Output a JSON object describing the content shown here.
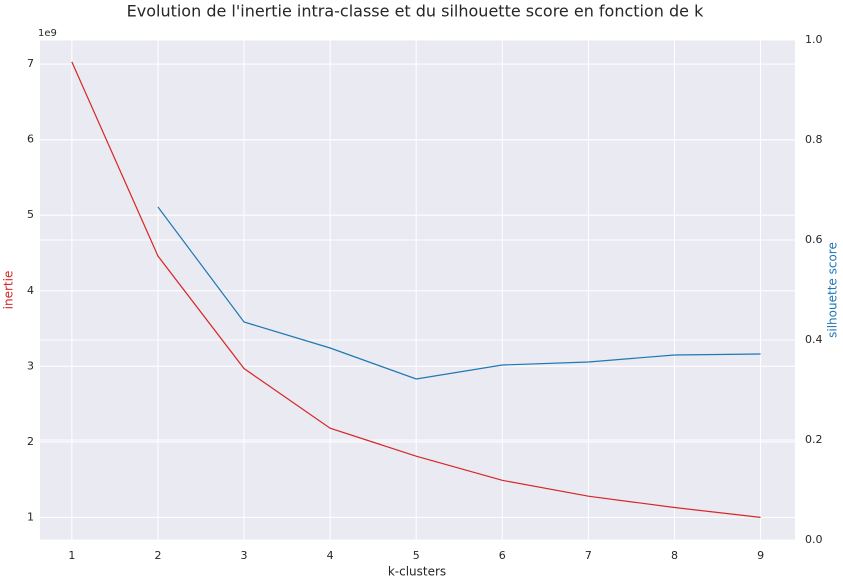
{
  "chart_data": {
    "type": "line",
    "title": "Evolution de l'inertie intra-classe et du silhouette score en fonction de k",
    "x_label": "k-clusters",
    "y_label": "inertie",
    "y2_label": "silhouette score",
    "y_offset_label": "1e9",
    "x": [
      1,
      2,
      3,
      4,
      5,
      6,
      7,
      8,
      9
    ],
    "series": [
      {
        "color": "#d62728",
        "values": [
          7.03,
          4.46,
          2.97,
          2.18,
          1.81,
          1.49,
          1.28,
          1.13,
          1.0
        ]
      },
      {
        "color": "#1f77b4",
        "axis": "y2",
        "values": [
          null,
          0.666,
          0.436,
          0.384,
          0.322,
          0.35,
          0.356,
          0.37,
          0.372
        ]
      }
    ],
    "xlim": [
      0.63,
      9.4
    ],
    "xticks": [
      1,
      2,
      3,
      4,
      5,
      6,
      7,
      8,
      9
    ],
    "ylim": [
      0.7,
      7.32
    ],
    "yticks": [
      1,
      2,
      3,
      4,
      5,
      6,
      7
    ],
    "y2lim": [
      0,
      1
    ],
    "y2ticks": [
      {
        "value": 0,
        "label": "0.0"
      },
      0.2,
      0.4,
      0.6,
      0.8,
      {
        "value": 1,
        "label": "1.0"
      }
    ],
    "grid": true
  }
}
